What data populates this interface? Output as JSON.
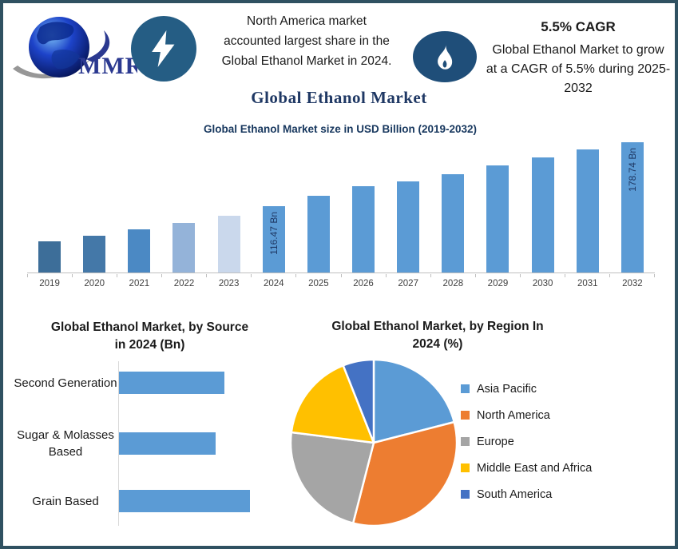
{
  "header": {
    "logo_text": "MMR",
    "highlight_lines": [
      "North America market",
      "accounted largest share in the",
      "Global Ethanol Market in 2024."
    ],
    "highlight": "North America market accounted largest share in the Global Ethanol Market in 2024.",
    "cagr_heading": "5.5% CAGR",
    "cagr_lines": [
      "Global Ethanol Market to grow",
      "at a CAGR of 5.5% during 2025-",
      "2032"
    ],
    "cagr_text": "Global Ethanol Market to grow at a CAGR of 5.5% during 2025-2032"
  },
  "main_title": "Global Ethanol Market",
  "colors": {
    "frame_border": "#2f5161",
    "lightning_badge": "#255d84",
    "flame_badge": "#1f4e79",
    "title_navy": "#1f3864",
    "chart_title_navy": "#17375e",
    "primary_bar_blue": "#5b9bd5",
    "axis_gray": "#bfbfbf"
  },
  "chart_data": [
    {
      "type": "bar",
      "title": "Global Ethanol Market size in USD Billion (2019-2032)",
      "categories": [
        "2019",
        "2020",
        "2021",
        "2022",
        "2023",
        "2024",
        "2025",
        "2026",
        "2027",
        "2028",
        "2029",
        "2030",
        "2031",
        "2032"
      ],
      "values": [
        82,
        88,
        94,
        100,
        107,
        116.47,
        127,
        136,
        141,
        148,
        156,
        164,
        172,
        178.74
      ],
      "data_labels": [
        "",
        "",
        "",
        "",
        "",
        "116.47 Bn",
        "",
        "",
        "",
        "",
        "",
        "",
        "",
        "178.74 Bn"
      ],
      "bar_colors": [
        "#3d6e99",
        "#4478a8",
        "#4b89c4",
        "#94b3d9",
        "#cad8ec",
        "#5b9bd5",
        "#5b9bd5",
        "#5b9bd5",
        "#5b9bd5",
        "#5b9bd5",
        "#5b9bd5",
        "#5b9bd5",
        "#5b9bd5",
        "#5b9bd5"
      ],
      "ylabel": "USD Billion",
      "ylim": [
        52,
        182
      ],
      "grid": false,
      "note": "values without printed labels are estimated from bar heights"
    },
    {
      "type": "bar-horizontal",
      "title": "Global Ethanol Market, by Source in 2024 (Bn)",
      "title_lines": [
        "Global Ethanol Market, by Source",
        "in 2024 (Bn)"
      ],
      "categories": [
        "Second Generation",
        "Sugar & Molasses Based",
        "Grain Based"
      ],
      "category_lines": [
        [
          "Second",
          "Generation"
        ],
        [
          "Sugar & Molasses",
          "Based"
        ],
        [
          "Grain Based"
        ]
      ],
      "values": [
        37,
        34,
        46
      ],
      "xlim": [
        0,
        50
      ],
      "bar_color": "#5b9bd5",
      "grid": false,
      "note": "values estimated from bar lengths, no data labels printed"
    },
    {
      "type": "pie",
      "title": "Global Ethanol Market, by Region In 2024 (%)",
      "title_lines": [
        "Global Ethanol Market, by Region In",
        "2024 (%)"
      ],
      "categories": [
        "Asia Pacific",
        "North America",
        "Europe",
        "Middle East and Africa",
        "South America"
      ],
      "values": [
        21,
        33,
        23,
        17,
        6
      ],
      "colors": [
        "#5b9bd5",
        "#ed7d31",
        "#a5a5a5",
        "#ffc000",
        "#4472c4"
      ],
      "legend_position": "right",
      "start_angle_deg": 0,
      "note": "percent shares estimated from slice angles; no data labels printed"
    }
  ]
}
